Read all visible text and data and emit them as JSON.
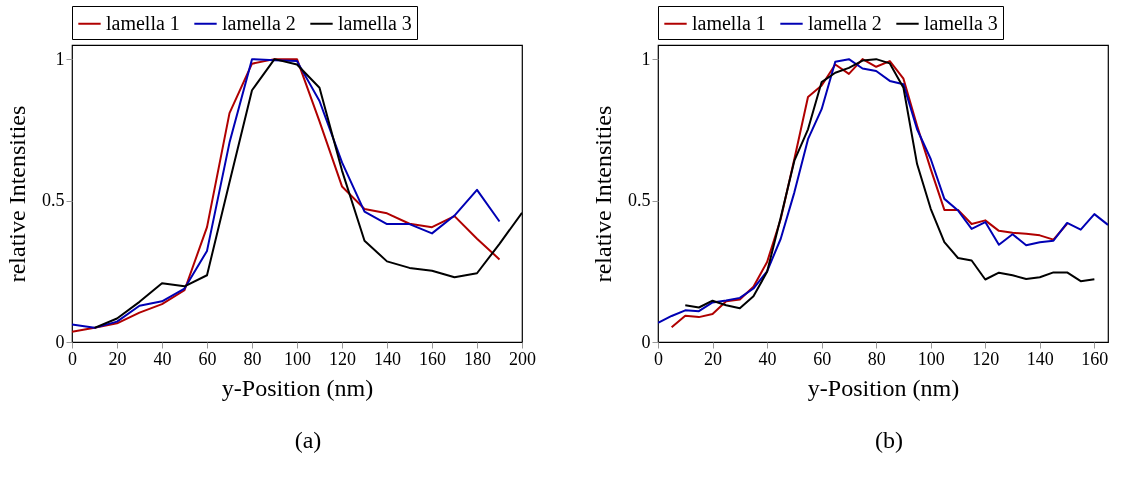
{
  "chart_data": [
    {
      "type": "line",
      "xlabel": "y-Position (nm)",
      "ylabel": "relative Intensities",
      "xlim": [
        0,
        200
      ],
      "xticks": [
        0,
        20,
        40,
        60,
        80,
        100,
        120,
        140,
        160,
        180,
        200
      ],
      "ylim": [
        0,
        1.05
      ],
      "yticks": [
        0,
        0.5,
        1
      ],
      "grid": false,
      "legend": "top",
      "annotations": [
        "(a)"
      ],
      "series": [
        {
          "name": "lamella 1",
          "color": "#b00000",
          "x": [
            0,
            10,
            20,
            30,
            40,
            50,
            60,
            70,
            80,
            90,
            100,
            110,
            120,
            130,
            140,
            150,
            160,
            170,
            180,
            190
          ],
          "values": [
            0.036,
            0.05,
            0.066,
            0.104,
            0.134,
            0.183,
            0.406,
            0.809,
            0.984,
            1,
            1,
            0.78,
            0.55,
            0.47,
            0.455,
            0.418,
            0.406,
            0.445,
            0.365,
            0.292
          ]
        },
        {
          "name": "lamella 2",
          "color": "#0000b4",
          "x": [
            0,
            10,
            20,
            30,
            40,
            50,
            60,
            70,
            80,
            90,
            100,
            110,
            120,
            130,
            140,
            150,
            160,
            170,
            180,
            190
          ],
          "values": [
            0.062,
            0.05,
            0.072,
            0.128,
            0.144,
            0.189,
            0.322,
            0.705,
            1,
            0.996,
            0.993,
            0.852,
            0.635,
            0.461,
            0.417,
            0.417,
            0.384,
            0.447,
            0.538,
            0.426
          ]
        },
        {
          "name": "lamella 3",
          "color": "#000000",
          "x": [
            10,
            20,
            30,
            40,
            50,
            60,
            70,
            80,
            90,
            100,
            110,
            120,
            130,
            140,
            150,
            160,
            170,
            180,
            190,
            200
          ],
          "values": [
            0.05,
            0.083,
            0.142,
            0.208,
            0.197,
            0.236,
            0.565,
            0.89,
            1,
            0.981,
            0.899,
            0.606,
            0.358,
            0.285,
            0.262,
            0.252,
            0.229,
            0.243,
            0.347,
            0.457
          ]
        }
      ]
    },
    {
      "type": "line",
      "xlabel": "y-Position (nm)",
      "ylabel": "relative Intensities",
      "xlim": [
        0,
        165
      ],
      "xticks": [
        0,
        20,
        40,
        60,
        80,
        100,
        120,
        140,
        160
      ],
      "ylim": [
        0,
        1.05
      ],
      "yticks": [
        0,
        0.5,
        1
      ],
      "grid": false,
      "legend": "top",
      "annotations": [
        "(b)"
      ],
      "series": [
        {
          "name": "lamella 1",
          "color": "#b00000",
          "x": [
            5,
            10,
            15,
            20,
            25,
            30,
            35,
            40,
            45,
            50,
            55,
            60,
            65,
            70,
            75,
            80,
            85,
            90,
            95,
            100,
            105,
            110,
            115,
            120,
            125,
            130,
            135,
            140,
            145,
            150
          ],
          "values": [
            0.052,
            0.093,
            0.088,
            0.099,
            0.144,
            0.15,
            0.195,
            0.283,
            0.435,
            0.647,
            0.866,
            0.907,
            0.981,
            0.948,
            1,
            0.973,
            0.993,
            0.931,
            0.764,
            0.611,
            0.467,
            0.467,
            0.417,
            0.43,
            0.393,
            0.386,
            0.383,
            0.377,
            0.362,
            0.418
          ]
        },
        {
          "name": "lamella 2",
          "color": "#0000b4",
          "x": [
            0,
            5,
            10,
            15,
            20,
            25,
            30,
            35,
            40,
            45,
            50,
            55,
            60,
            65,
            70,
            75,
            80,
            85,
            90,
            95,
            100,
            105,
            110,
            115,
            120,
            125,
            130,
            135,
            140,
            145,
            150,
            155,
            160,
            165
          ],
          "values": [
            0.068,
            0.092,
            0.112,
            0.109,
            0.14,
            0.147,
            0.156,
            0.189,
            0.25,
            0.365,
            0.529,
            0.717,
            0.823,
            0.991,
            1,
            0.967,
            0.958,
            0.923,
            0.911,
            0.752,
            0.647,
            0.506,
            0.465,
            0.4,
            0.424,
            0.344,
            0.381,
            0.342,
            0.353,
            0.358,
            0.421,
            0.397,
            0.452,
            0.414
          ]
        },
        {
          "name": "lamella 3",
          "color": "#000000",
          "x": [
            10,
            15,
            20,
            25,
            30,
            35,
            40,
            45,
            50,
            55,
            60,
            65,
            70,
            75,
            80,
            85,
            90,
            95,
            100,
            105,
            110,
            115,
            120,
            125,
            130,
            135,
            140,
            145,
            150,
            155,
            160
          ],
          "values": [
            0.13,
            0.122,
            0.146,
            0.13,
            0.119,
            0.162,
            0.248,
            0.44,
            0.641,
            0.752,
            0.919,
            0.952,
            0.969,
            0.995,
            1,
            0.985,
            0.899,
            0.629,
            0.471,
            0.353,
            0.297,
            0.288,
            0.221,
            0.245,
            0.236,
            0.223,
            0.229,
            0.246,
            0.246,
            0.215,
            0.222
          ]
        }
      ]
    }
  ]
}
